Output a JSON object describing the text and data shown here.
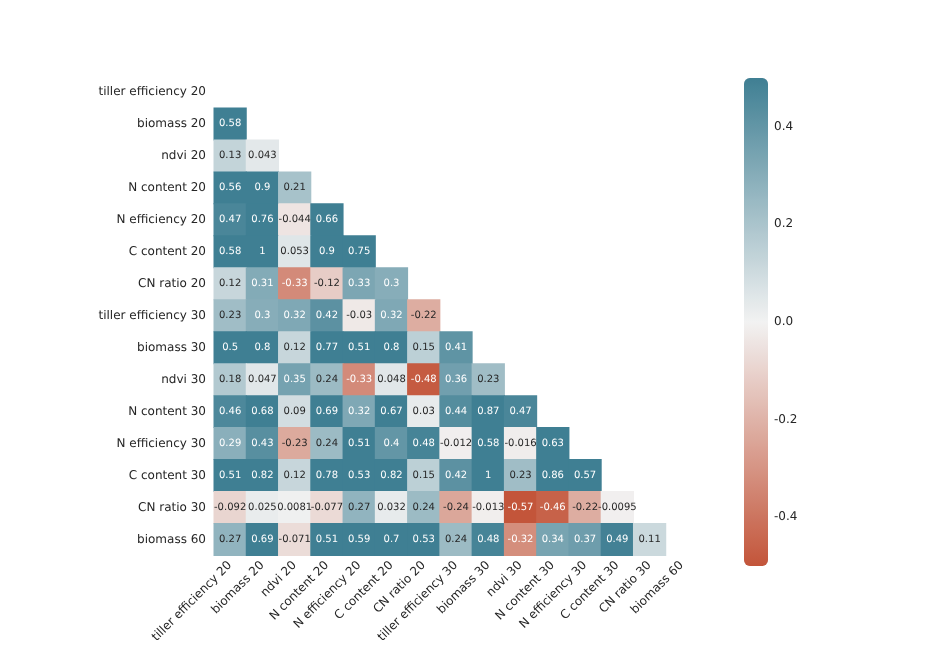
{
  "chart_data": {
    "type": "heatmap",
    "categories": [
      "tiller efficiency 20",
      "biomass 20",
      "ndvi 20",
      "N content 20",
      "N efficiency 20",
      "C content 20",
      "CN ratio 20",
      "tiller efficiency 30",
      "biomass 30",
      "ndvi 30",
      "N content 30",
      "N efficiency 30",
      "C content 30",
      "CN ratio 30",
      "biomass 60"
    ],
    "y_categories": [
      "tiller efficiency 20",
      "biomass 20",
      "ndvi 20",
      "N content 20",
      "N efficiency 20",
      "C content 20",
      "CN ratio 20",
      "tiller efficiency 30",
      "biomass 30",
      "ndvi 30",
      "N content 30",
      "N efficiency 30",
      "C content 30",
      "CN ratio 30",
      "biomass 60"
    ],
    "cells": [
      [
        null,
        null,
        null,
        null,
        null,
        null,
        null,
        null,
        null,
        null,
        null,
        null,
        null,
        null,
        null
      ],
      [
        0.58,
        null,
        null,
        null,
        null,
        null,
        null,
        null,
        null,
        null,
        null,
        null,
        null,
        null,
        null
      ],
      [
        0.13,
        0.043,
        null,
        null,
        null,
        null,
        null,
        null,
        null,
        null,
        null,
        null,
        null,
        null,
        null
      ],
      [
        0.56,
        0.9,
        0.21,
        null,
        null,
        null,
        null,
        null,
        null,
        null,
        null,
        null,
        null,
        null,
        null
      ],
      [
        0.47,
        0.76,
        -0.044,
        0.66,
        null,
        null,
        null,
        null,
        null,
        null,
        null,
        null,
        null,
        null,
        null
      ],
      [
        0.58,
        1,
        0.053,
        0.9,
        0.75,
        null,
        null,
        null,
        null,
        null,
        null,
        null,
        null,
        null,
        null
      ],
      [
        0.12,
        0.31,
        -0.33,
        -0.12,
        0.33,
        0.3,
        null,
        null,
        null,
        null,
        null,
        null,
        null,
        null,
        null
      ],
      [
        0.23,
        0.3,
        0.32,
        0.42,
        -0.03,
        0.32,
        -0.22,
        null,
        null,
        null,
        null,
        null,
        null,
        null,
        null
      ],
      [
        0.5,
        0.8,
        0.12,
        0.77,
        0.51,
        0.8,
        0.15,
        0.41,
        null,
        null,
        null,
        null,
        null,
        null,
        null
      ],
      [
        0.18,
        0.047,
        0.35,
        0.24,
        -0.33,
        0.048,
        -0.48,
        0.36,
        0.23,
        null,
        null,
        null,
        null,
        null,
        null
      ],
      [
        0.46,
        0.68,
        0.09,
        0.69,
        0.32,
        0.67,
        0.03,
        0.44,
        0.87,
        0.47,
        null,
        null,
        null,
        null,
        null
      ],
      [
        0.29,
        0.43,
        -0.23,
        0.24,
        0.51,
        0.4,
        0.48,
        -0.012,
        0.58,
        -0.016,
        0.63,
        null,
        null,
        null,
        null
      ],
      [
        0.51,
        0.82,
        0.12,
        0.78,
        0.53,
        0.82,
        0.15,
        0.42,
        1,
        0.23,
        0.86,
        0.57,
        null,
        null,
        null
      ],
      [
        -0.092,
        0.025,
        0.0081,
        -0.077,
        0.27,
        0.032,
        0.24,
        -0.24,
        -0.013,
        -0.57,
        -0.46,
        -0.22,
        -0.0095,
        null,
        null
      ],
      [
        0.27,
        0.69,
        -0.071,
        0.51,
        0.59,
        0.7,
        0.53,
        0.24,
        0.48,
        -0.32,
        0.34,
        0.37,
        0.49,
        0.11,
        null
      ]
    ],
    "clim": [
      -0.5,
      0.5
    ],
    "cticks": [
      -0.4,
      -0.2,
      {
        "value": 0,
        "label": "0.0"
      },
      0.2,
      0.4
    ],
    "data_labels": true
  }
}
